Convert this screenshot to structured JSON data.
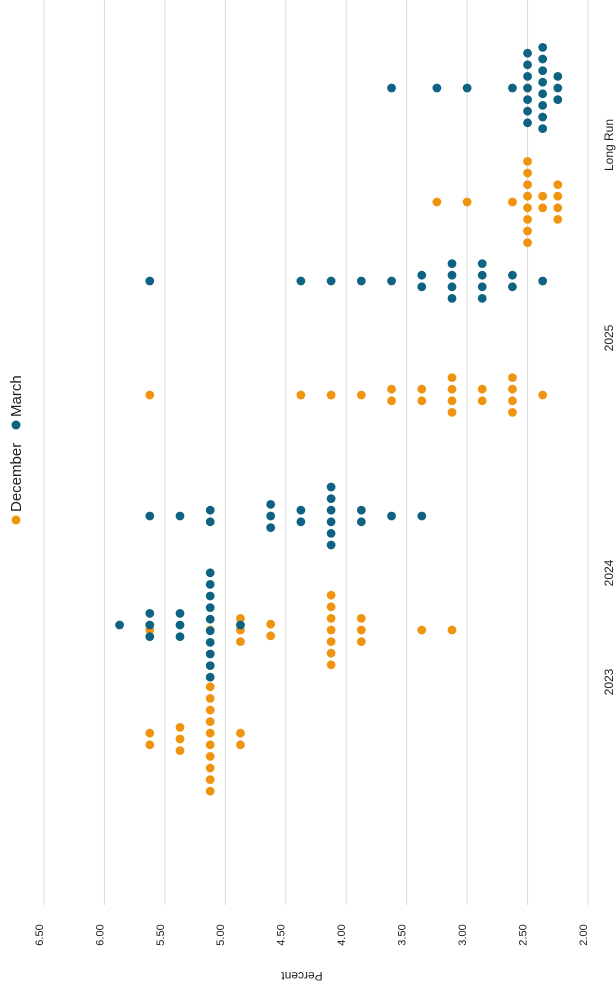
{
  "chart_data": {
    "type": "scatter",
    "subtype": "dot plot (FOMC projections of federal funds rate)",
    "orientation": "rotated 90° (values run horizontally, categories run vertically)",
    "title": "",
    "xlabel": "",
    "ylabel": "Percent",
    "ylim": [
      2.0,
      6.5
    ],
    "yticks": [
      "6.50",
      "6.00",
      "5.50",
      "5.00",
      "4.50",
      "4.00",
      "3.50",
      "3.00",
      "2.50",
      "2.00"
    ],
    "grid": true,
    "legend_placement": "top",
    "categories": [
      "2023",
      "2024",
      "2025",
      "Long Run"
    ],
    "series": [
      {
        "name": "December",
        "color": "#f0940f",
        "points": {
          "2023": [
            [
              5.625,
              2
            ],
            [
              5.375,
              3
            ],
            [
              5.125,
              10
            ],
            [
              4.875,
              2
            ]
          ],
          "2024": [
            [
              5.625,
              1
            ],
            [
              5.125,
              1
            ],
            [
              4.875,
              3
            ],
            [
              4.625,
              2
            ],
            [
              4.125,
              7
            ],
            [
              3.875,
              3
            ],
            [
              3.375,
              1
            ],
            [
              3.125,
              1
            ]
          ],
          "2025": [
            [
              5.625,
              1
            ],
            [
              4.375,
              1
            ],
            [
              4.125,
              1
            ],
            [
              3.875,
              1
            ],
            [
              3.625,
              2
            ],
            [
              3.375,
              2
            ],
            [
              3.125,
              4
            ],
            [
              2.875,
              2
            ],
            [
              2.625,
              4
            ],
            [
              2.375,
              1
            ]
          ],
          "Long Run": [
            [
              3.25,
              1
            ],
            [
              3.0,
              1
            ],
            [
              2.625,
              1
            ],
            [
              2.5,
              8
            ],
            [
              2.375,
              2
            ],
            [
              2.25,
              4
            ]
          ]
        }
      },
      {
        "name": "March",
        "color": "#0f6382",
        "points": {
          "2023": [
            [
              5.875,
              1
            ],
            [
              5.625,
              3
            ],
            [
              5.375,
              3
            ],
            [
              5.125,
              10
            ],
            [
              4.875,
              1
            ]
          ],
          "2024": [
            [
              5.625,
              1
            ],
            [
              5.375,
              1
            ],
            [
              5.125,
              2
            ],
            [
              4.625,
              3
            ],
            [
              4.375,
              2
            ],
            [
              4.125,
              6
            ],
            [
              3.875,
              2
            ],
            [
              3.625,
              1
            ],
            [
              3.375,
              1
            ]
          ],
          "2025": [
            [
              5.625,
              1
            ],
            [
              4.375,
              1
            ],
            [
              4.125,
              1
            ],
            [
              3.875,
              1
            ],
            [
              3.625,
              1
            ],
            [
              3.375,
              2
            ],
            [
              3.125,
              4
            ],
            [
              2.875,
              4
            ],
            [
              2.625,
              2
            ],
            [
              2.375,
              1
            ]
          ],
          "Long Run": [
            [
              3.625,
              1
            ],
            [
              3.25,
              1
            ],
            [
              3.0,
              1
            ],
            [
              2.625,
              1
            ],
            [
              2.5,
              7
            ],
            [
              2.375,
              8
            ],
            [
              2.25,
              3
            ]
          ]
        }
      }
    ]
  }
}
